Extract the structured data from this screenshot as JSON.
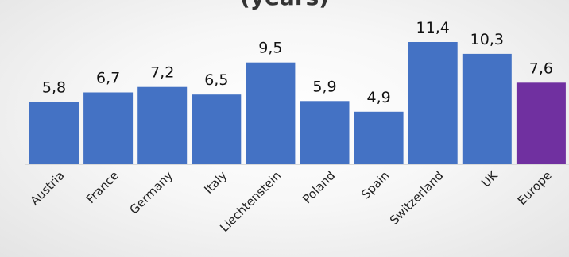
{
  "chart_data": {
    "type": "bar",
    "title": "(years)",
    "categories": [
      "Austria",
      "France",
      "Germany",
      "Italy",
      "Liechtenstein",
      "Poland",
      "Spain",
      "Switzerland",
      "UK",
      "Europe"
    ],
    "values": [
      5.8,
      6.7,
      7.2,
      6.5,
      9.5,
      5.9,
      4.9,
      11.4,
      10.3,
      7.6
    ],
    "value_labels": [
      "5,8",
      "6,7",
      "7,2",
      "6,5",
      "9,5",
      "5,9",
      "4,9",
      "11,4",
      "10,3",
      "7,6"
    ],
    "xlabel": "",
    "ylabel": "",
    "ylim": [
      0,
      11.4
    ],
    "grid": false,
    "legend": "none",
    "colors": {
      "bar": "#4472C4",
      "highlight": "#7030A0",
      "baseline": "#d9d9d9"
    },
    "highlight_category": "Europe"
  }
}
